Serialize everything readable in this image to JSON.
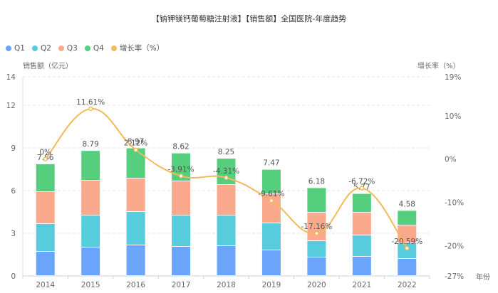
{
  "chart_data": {
    "type": "bar",
    "title": "【钠钾镁钙葡萄糖注射液】【销售额】全国医院-年度趋势",
    "categories": [
      "2014",
      "2015",
      "2016",
      "2017",
      "2018",
      "2019",
      "2020",
      "2021",
      "2022"
    ],
    "series": [
      {
        "name": "Q1",
        "type": "bar",
        "stack": "total",
        "color": "#6aa5fb",
        "values": [
          1.7,
          2.0,
          2.15,
          2.05,
          2.1,
          1.8,
          1.3,
          1.35,
          1.2
        ]
      },
      {
        "name": "Q2",
        "type": "bar",
        "stack": "total",
        "color": "#57ccdc",
        "values": [
          1.95,
          2.25,
          2.35,
          2.2,
          2.15,
          1.9,
          1.15,
          1.5,
          1.1
        ]
      },
      {
        "name": "Q3",
        "type": "bar",
        "stack": "total",
        "color": "#fba98d",
        "values": [
          2.25,
          2.45,
          2.35,
          2.4,
          2.15,
          2.05,
          2.0,
          1.6,
          1.25
        ]
      },
      {
        "name": "Q4",
        "type": "bar",
        "stack": "total",
        "color": "#55cf7e",
        "values": [
          1.96,
          2.09,
          2.12,
          1.97,
          1.85,
          1.72,
          1.73,
          1.32,
          1.03
        ]
      },
      {
        "name": "增长率（%）",
        "type": "line",
        "axis": "right",
        "color": "#f4b95a",
        "values": [
          0,
          11.61,
          2.12,
          -3.91,
          -4.31,
          -9.61,
          -17.16,
          -6.72,
          -20.59
        ]
      }
    ],
    "totals": [
      7.86,
      8.79,
      8.97,
      8.62,
      8.25,
      7.47,
      6.18,
      5.77,
      4.58
    ],
    "total_labels": [
      "7.86",
      "8.79",
      "8.97",
      "8.62",
      "8.25",
      "7.47",
      "6.18",
      "5.77",
      "4.58"
    ],
    "growth_labels": [
      "0%",
      "11.61%",
      "2.12%",
      "-3.91%",
      "-4.31%",
      "-9.61%",
      "-17.16%",
      "-6.72%",
      "-20.59%"
    ],
    "ylabel": "销售额（亿元）",
    "y2label": "增长率（%）",
    "xlabel": "年份",
    "ylim": [
      0,
      14
    ],
    "y_ticks": [
      0,
      3,
      6,
      9,
      12,
      14
    ],
    "y2lim": [
      -27,
      19
    ],
    "y2_ticks": [
      -27,
      -20,
      -10,
      0,
      10,
      19
    ],
    "y2_tick_labels": [
      "-27%",
      "-20%",
      "-10%",
      "0%",
      "10%",
      "19%"
    ],
    "grid": true,
    "legend_position": "top-left"
  },
  "legend": [
    {
      "label": "Q1",
      "color": "#6aa5fb"
    },
    {
      "label": "Q2",
      "color": "#57ccdc"
    },
    {
      "label": "Q3",
      "color": "#fba98d"
    },
    {
      "label": "Q4",
      "color": "#55cf7e"
    },
    {
      "label": "增长率（%）",
      "color": "#f4b95a"
    }
  ]
}
